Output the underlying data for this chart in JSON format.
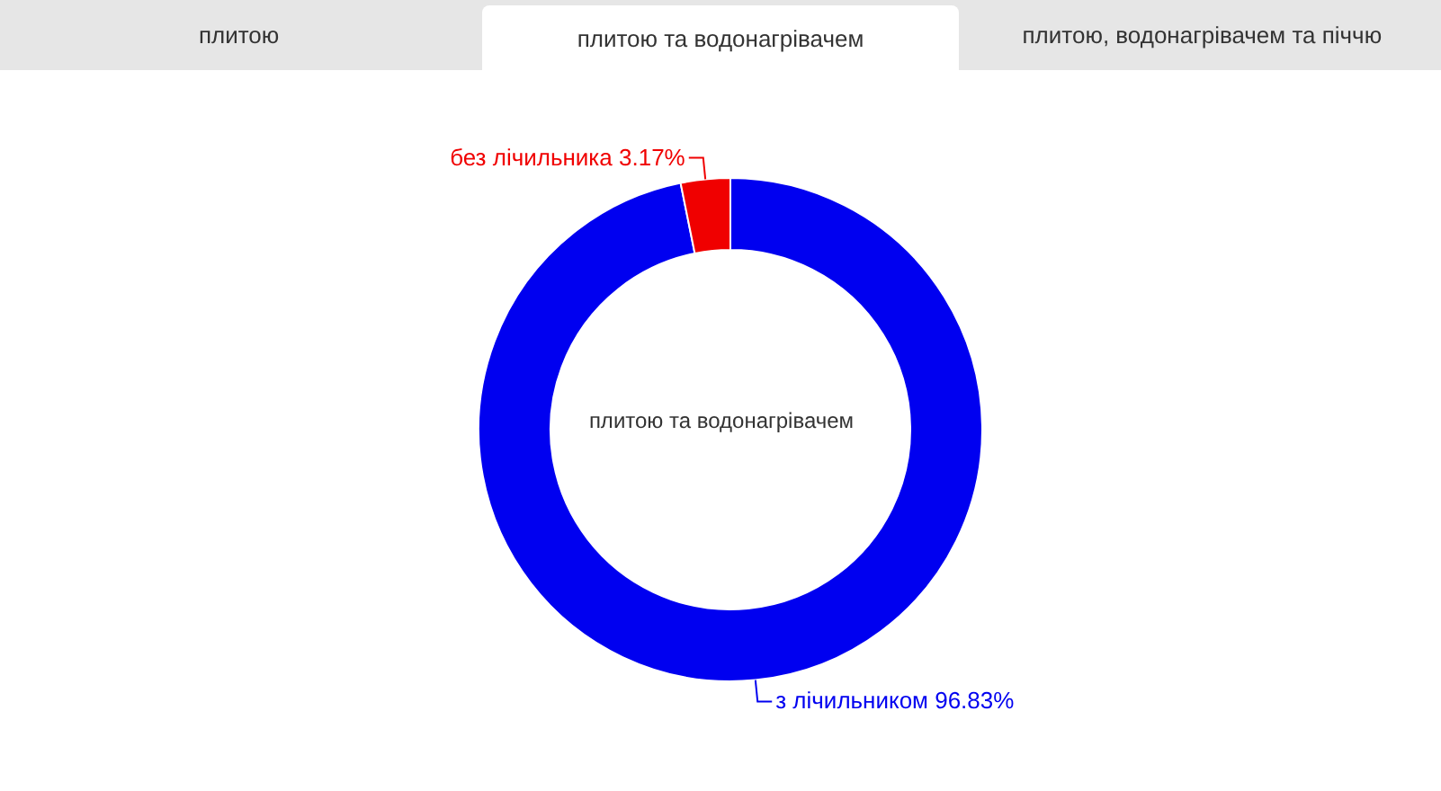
{
  "chart_data": {
    "type": "donut",
    "title": "плитою та водонагрівачем",
    "annotations": [
      "плитою",
      "плитою та водонагрівачем",
      "плитою, водонагрівачем та піччю"
    ],
    "categories": [
      "з лічильником",
      "без лічильника"
    ],
    "values": [
      96.83,
      3.17
    ],
    "colors": [
      "#0000f0",
      "#f00000"
    ],
    "value_labels": [
      "96.83%",
      "3.17%"
    ]
  }
}
